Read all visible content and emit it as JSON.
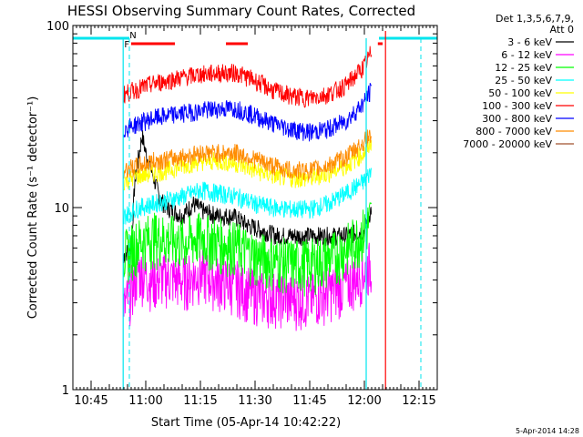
{
  "chart_data": {
    "type": "line",
    "title": "HESSI Observing Summary Count Rates, Corrected",
    "xlabel": "Start Time (05-Apr-14 10:42:22)",
    "ylabel": "Corrected Count Rate (s⁻¹ detector⁻¹)",
    "ylog": true,
    "ylim": [
      1,
      100
    ],
    "xlim_minutes_after_10_40": [
      0,
      100
    ],
    "x_ticks": [
      {
        "label": "10:45",
        "t": 5
      },
      {
        "label": "11:00",
        "t": 20
      },
      {
        "label": "11:15",
        "t": 35
      },
      {
        "label": "11:30",
        "t": 50
      },
      {
        "label": "11:45",
        "t": 65
      },
      {
        "label": "12:00",
        "t": 80
      },
      {
        "label": "12:15",
        "t": 95
      }
    ],
    "y_ticks": [
      {
        "label": "1",
        "v": 1
      },
      {
        "label": "10",
        "v": 10
      },
      {
        "label": "100",
        "v": 100
      }
    ],
    "legend_header": [
      "Det 1,3,5,6,7,9,",
      "Att 0"
    ],
    "legend_position": "right",
    "footer_date": "5-Apr-2014 14:28",
    "flags": {
      "F_label": "F",
      "N_label": "N",
      "night_intervals": [
        [
          0,
          15.5
        ],
        [
          84,
          100
        ]
      ],
      "N_lines_t": [
        15.5,
        95.5
      ],
      "cyan_lines_t": [
        13.8,
        80.5
      ],
      "flare_bars": [
        [
          16,
          28
        ],
        [
          42,
          48
        ],
        [
          83.7,
          85
        ]
      ]
    },
    "series": [
      {
        "name": "3 - 6 keV",
        "color": "#000000",
        "points": [
          [
            14,
            5.5
          ],
          [
            16,
            6
          ],
          [
            17,
            14
          ],
          [
            19,
            25
          ],
          [
            20,
            20
          ],
          [
            22,
            15
          ],
          [
            24,
            11
          ],
          [
            26,
            10
          ],
          [
            28,
            9.5
          ],
          [
            30,
            9
          ],
          [
            33,
            10.5
          ],
          [
            36,
            9.5
          ],
          [
            40,
            9
          ],
          [
            44,
            9
          ],
          [
            48,
            8
          ],
          [
            52,
            7.5
          ],
          [
            56,
            7
          ],
          [
            60,
            7
          ],
          [
            65,
            7
          ],
          [
            70,
            7
          ],
          [
            75,
            7
          ],
          [
            80,
            7.5
          ],
          [
            82,
            10
          ]
        ]
      },
      {
        "name": "6 - 12 keV",
        "color": "#ff00ff",
        "points": [
          [
            14,
            2.8
          ],
          [
            18,
            4.5
          ],
          [
            22,
            4
          ],
          [
            26,
            4.2
          ],
          [
            30,
            4
          ],
          [
            35,
            4.4
          ],
          [
            40,
            4
          ],
          [
            45,
            3.8
          ],
          [
            48,
            3.5
          ],
          [
            52,
            3.3
          ],
          [
            56,
            3.3
          ],
          [
            60,
            3.2
          ],
          [
            65,
            3.2
          ],
          [
            70,
            3.5
          ],
          [
            75,
            3.8
          ],
          [
            80,
            4.5
          ],
          [
            82,
            5
          ]
        ]
      },
      {
        "name": "12 - 25 keV",
        "color": "#00ff00",
        "points": [
          [
            14,
            5.5
          ],
          [
            18,
            6.5
          ],
          [
            22,
            7
          ],
          [
            26,
            6.8
          ],
          [
            30,
            6.5
          ],
          [
            35,
            7
          ],
          [
            40,
            6.5
          ],
          [
            45,
            6.2
          ],
          [
            50,
            5.5
          ],
          [
            55,
            5.2
          ],
          [
            60,
            5
          ],
          [
            65,
            5
          ],
          [
            70,
            5.3
          ],
          [
            75,
            6
          ],
          [
            80,
            7.5
          ],
          [
            82,
            9
          ]
        ]
      },
      {
        "name": "25 - 50 keV",
        "color": "#00ffff",
        "points": [
          [
            14,
            9
          ],
          [
            18,
            10
          ],
          [
            22,
            10.5
          ],
          [
            26,
            11
          ],
          [
            30,
            11.5
          ],
          [
            35,
            12.5
          ],
          [
            40,
            12
          ],
          [
            45,
            11.5
          ],
          [
            50,
            10.5
          ],
          [
            55,
            10
          ],
          [
            60,
            9.8
          ],
          [
            65,
            9.8
          ],
          [
            70,
            10.5
          ],
          [
            75,
            12
          ],
          [
            80,
            14
          ],
          [
            82,
            16
          ]
        ]
      },
      {
        "name": "50 - 100 keV",
        "color": "#ffff00",
        "points": [
          [
            14,
            14
          ],
          [
            18,
            15
          ],
          [
            22,
            15.5
          ],
          [
            26,
            16
          ],
          [
            30,
            17
          ],
          [
            35,
            18
          ],
          [
            40,
            18
          ],
          [
            45,
            17.5
          ],
          [
            50,
            16
          ],
          [
            55,
            15
          ],
          [
            60,
            14.5
          ],
          [
            65,
            14.5
          ],
          [
            70,
            15.5
          ],
          [
            75,
            17
          ],
          [
            80,
            20
          ],
          [
            82,
            23
          ]
        ]
      },
      {
        "name": "100 - 300 keV",
        "color": "#ff0000",
        "points": [
          [
            14,
            42
          ],
          [
            18,
            45
          ],
          [
            22,
            48
          ],
          [
            26,
            50
          ],
          [
            30,
            52
          ],
          [
            35,
            54
          ],
          [
            40,
            55
          ],
          [
            45,
            55
          ],
          [
            50,
            50
          ],
          [
            55,
            44
          ],
          [
            60,
            41
          ],
          [
            65,
            40
          ],
          [
            70,
            42
          ],
          [
            75,
            47
          ],
          [
            80,
            60
          ],
          [
            82,
            72
          ]
        ]
      },
      {
        "name": "300 - 800 keV",
        "color": "#0000ff",
        "points": [
          [
            14,
            27
          ],
          [
            18,
            29
          ],
          [
            22,
            31
          ],
          [
            26,
            32
          ],
          [
            30,
            33
          ],
          [
            35,
            34
          ],
          [
            40,
            35
          ],
          [
            45,
            35
          ],
          [
            50,
            32
          ],
          [
            55,
            29
          ],
          [
            60,
            27
          ],
          [
            65,
            26
          ],
          [
            70,
            27
          ],
          [
            75,
            30
          ],
          [
            80,
            38
          ],
          [
            82,
            45
          ]
        ]
      },
      {
        "name": "800 - 7000 keV",
        "color": "#ff8c00",
        "points": [
          [
            14,
            16
          ],
          [
            18,
            17
          ],
          [
            22,
            18
          ],
          [
            26,
            18.5
          ],
          [
            30,
            19
          ],
          [
            35,
            20
          ],
          [
            40,
            20
          ],
          [
            45,
            20
          ],
          [
            50,
            18.5
          ],
          [
            55,
            17
          ],
          [
            60,
            16
          ],
          [
            65,
            16
          ],
          [
            70,
            17
          ],
          [
            75,
            19
          ],
          [
            80,
            23
          ],
          [
            82,
            26
          ]
        ]
      },
      {
        "name": "7000 - 20000 keV",
        "color": "#a0522d",
        "points": []
      }
    ]
  }
}
